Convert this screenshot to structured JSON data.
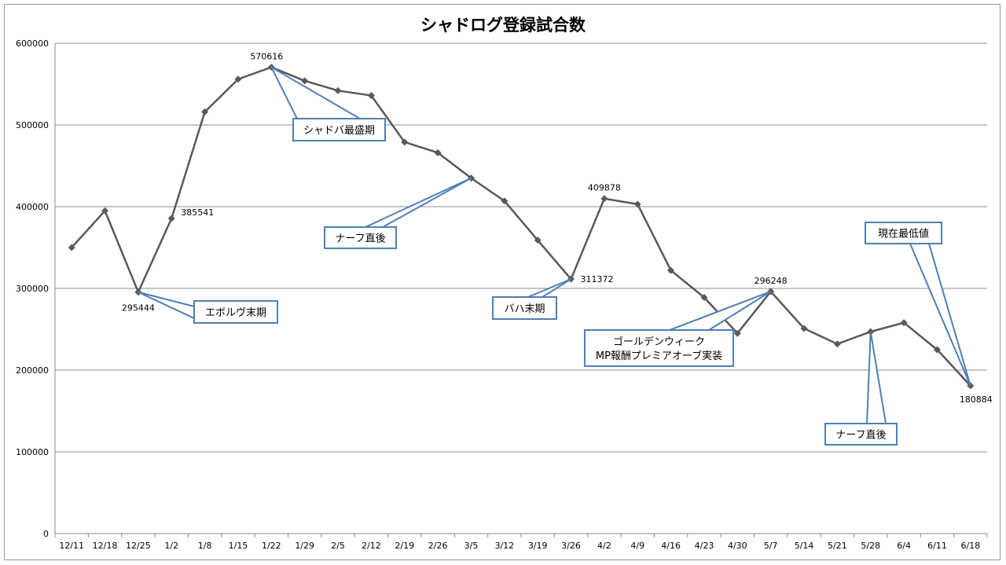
{
  "chart_data": {
    "type": "line",
    "title": "シャドログ登録試合数",
    "xlabel": "",
    "ylabel": "",
    "ylim": [
      0,
      600000
    ],
    "yticks": [
      "0",
      "100000",
      "200000",
      "300000",
      "400000",
      "500000",
      "600000"
    ],
    "grid": true,
    "legend": "none",
    "categories": [
      "12/11",
      "12/18",
      "12/25",
      "1/2",
      "1/8",
      "1/15",
      "1/22",
      "1/29",
      "2/5",
      "2/12",
      "2/19",
      "2/26",
      "3/5",
      "3/12",
      "3/19",
      "3/26",
      "4/2",
      "4/9",
      "4/16",
      "4/23",
      "4/30",
      "5/7",
      "5/14",
      "5/21",
      "5/28",
      "6/4",
      "6/11",
      "6/18"
    ],
    "series": [
      {
        "values": [
          350000,
          395000,
          295444,
          385541,
          516000,
          556000,
          570616,
          554000,
          542000,
          536000,
          479000,
          466000,
          435000,
          407000,
          359000,
          311372,
          409878,
          403000,
          322000,
          289000,
          245000,
          296248,
          251000,
          232000,
          247000,
          258000,
          225000,
          180884
        ],
        "color": "#595959"
      }
    ],
    "data_labels": [
      {
        "index": 2,
        "text": "295444"
      },
      {
        "index": 3,
        "text": "385541"
      },
      {
        "index": 6,
        "text": "570616"
      },
      {
        "index": 15,
        "text": "311372"
      },
      {
        "index": 16,
        "text": "409878"
      },
      {
        "index": 21,
        "text": "296248"
      },
      {
        "index": 27,
        "text": "180884"
      }
    ],
    "annotations": [
      {
        "index": 2,
        "lines": [
          "エボルヴ末期"
        ]
      },
      {
        "index": 6,
        "lines": [
          "シャドバ最盛期"
        ]
      },
      {
        "index": 12,
        "lines": [
          "ナーフ直後"
        ]
      },
      {
        "index": 15,
        "lines": [
          "バハ末期"
        ]
      },
      {
        "index": 21,
        "lines": [
          "ゴールデンウィーク",
          "MP報酬プレミアオーブ実装"
        ]
      },
      {
        "index": 24,
        "lines": [
          "ナーフ直後"
        ]
      },
      {
        "index": 27,
        "lines": [
          "現在最低値"
        ]
      }
    ]
  },
  "colors": {
    "line": "#595959",
    "grid": "#8c8c8c",
    "callout_border": "#4f7fb5"
  }
}
